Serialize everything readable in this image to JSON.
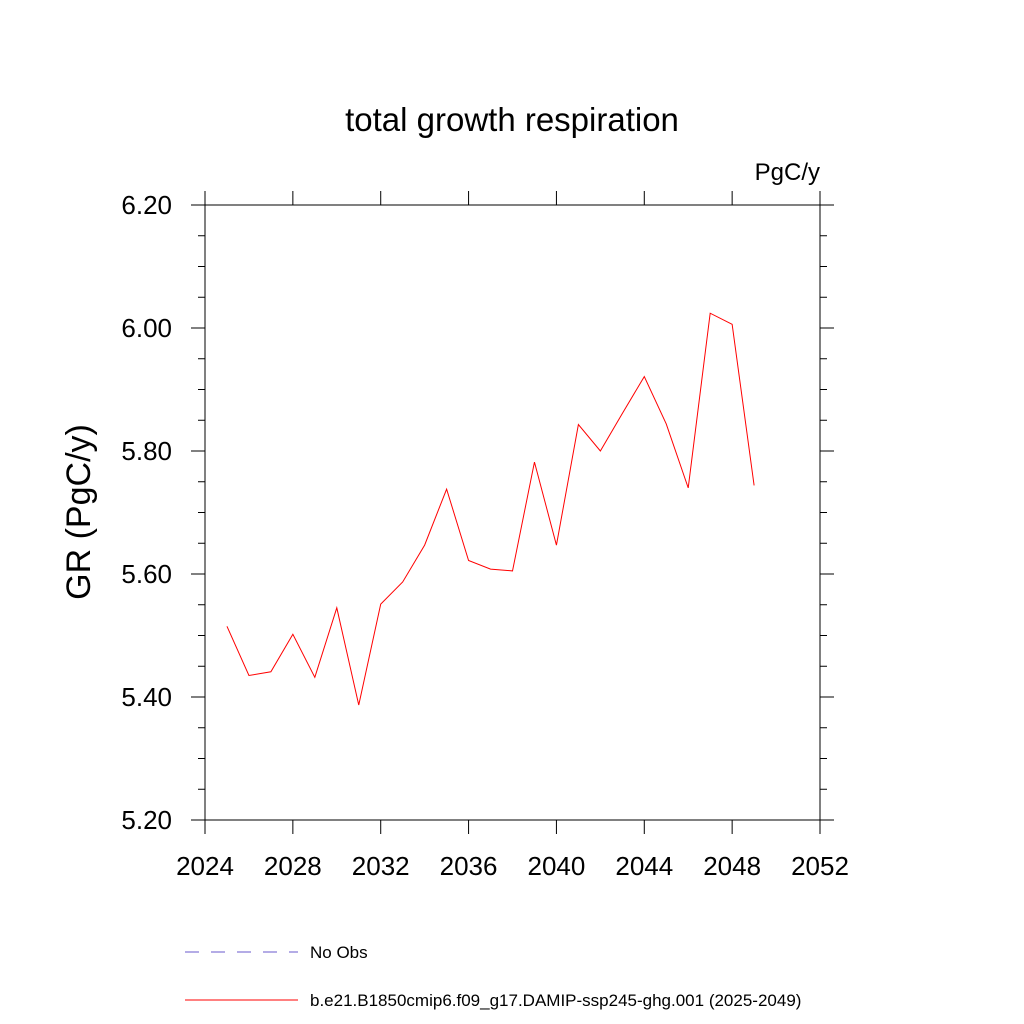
{
  "chart_data": {
    "type": "line",
    "title": "total growth respiration",
    "units_label": "PgC/y",
    "ylabel": "GR  (PgC/y)",
    "xlabel": "",
    "xlim": [
      2024,
      2052
    ],
    "ylim": [
      5.2,
      6.2
    ],
    "x_ticks": [
      2024,
      2028,
      2032,
      2036,
      2040,
      2044,
      2048,
      2052
    ],
    "x_tick_labels": [
      "2024",
      "2028",
      "2032",
      "2036",
      "2040",
      "2044",
      "2048",
      "2052"
    ],
    "y_ticks": [
      5.2,
      5.4,
      5.6,
      5.8,
      6.0,
      6.2
    ],
    "y_tick_labels": [
      "5.20",
      "5.40",
      "5.60",
      "5.80",
      "6.00",
      "6.20"
    ],
    "grid": false,
    "legend_position": "bottom",
    "series": [
      {
        "name": "b.e21.B1850cmip6.f09_g17.DAMIP-ssp245-ghg.001 (2025-2049)",
        "color": "#ff0000",
        "style": "solid",
        "x": [
          2025,
          2026,
          2027,
          2028,
          2029,
          2030,
          2031,
          2032,
          2033,
          2034,
          2035,
          2036,
          2037,
          2038,
          2039,
          2040,
          2041,
          2042,
          2043,
          2044,
          2045,
          2046,
          2047,
          2048,
          2049
        ],
        "y": [
          5.515,
          5.435,
          5.441,
          5.502,
          5.432,
          5.545,
          5.387,
          5.551,
          5.587,
          5.647,
          5.738,
          5.622,
          5.608,
          5.605,
          5.782,
          5.647,
          5.843,
          5.8,
          5.861,
          5.921,
          5.844,
          5.74,
          6.024,
          6.006,
          5.744
        ]
      }
    ],
    "legend": [
      {
        "label": "No Obs",
        "color": "#6a5acd",
        "style": "dashed"
      },
      {
        "label": "b.e21.B1850cmip6.f09_g17.DAMIP-ssp245-ghg.001 (2025-2049)",
        "color": "#ff0000",
        "style": "solid"
      }
    ]
  }
}
